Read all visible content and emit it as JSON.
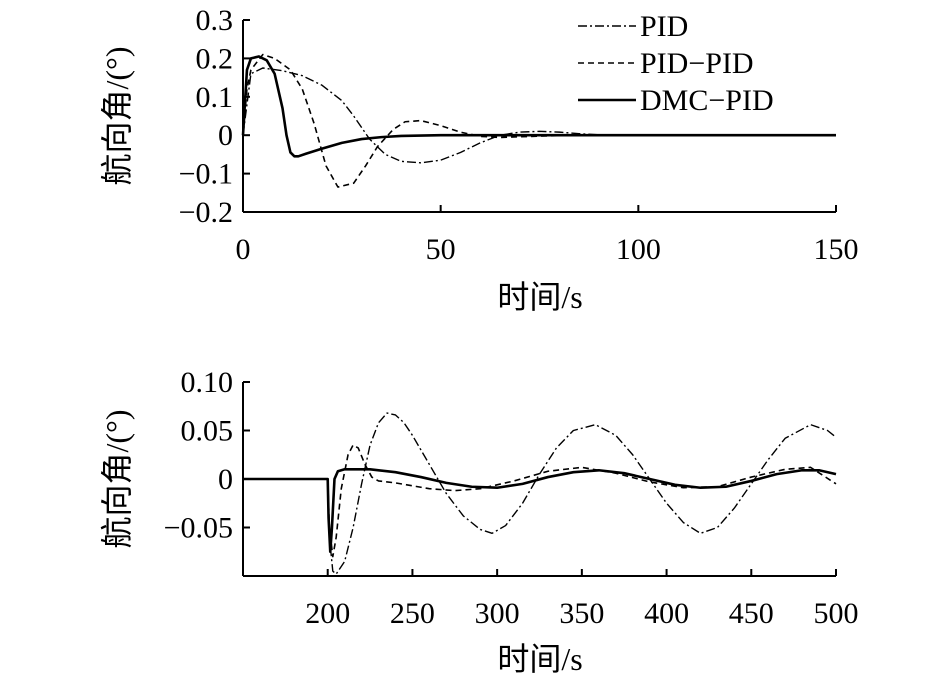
{
  "chart_data": [
    {
      "type": "line",
      "title": "",
      "xlabel": "时间/s",
      "ylabel": "航向角/(°)",
      "xlim": [
        0,
        150
      ],
      "ylim": [
        -0.2,
        0.3
      ],
      "xticks": [
        0,
        50,
        100,
        150
      ],
      "xtick_labels": [
        "0",
        "50",
        "100",
        "150"
      ],
      "yticks": [
        -0.2,
        -0.1,
        0,
        0.1,
        0.2,
        0.3
      ],
      "ytick_labels": [
        "−0.2",
        "−0.1",
        "0",
        "0.1",
        "0.2",
        "0.3"
      ],
      "legend_position": "top-right",
      "grid": false,
      "series": [
        {
          "name": "PID",
          "style": "dashdot",
          "x": [
            0,
            2,
            5,
            10,
            15,
            20,
            25,
            28,
            32,
            36,
            40,
            45,
            50,
            55,
            60,
            65,
            70,
            75,
            80,
            85,
            90,
            100,
            110,
            130,
            150
          ],
          "y": [
            0,
            0.16,
            0.175,
            0.168,
            0.155,
            0.13,
            0.09,
            0.05,
            -0.01,
            -0.05,
            -0.068,
            -0.072,
            -0.065,
            -0.045,
            -0.02,
            0.0,
            0.008,
            0.01,
            0.008,
            0.004,
            0.001,
            0,
            0,
            0,
            0
          ]
        },
        {
          "name": "PID−PID",
          "style": "dashed",
          "x": [
            0,
            1,
            2,
            5,
            8,
            12,
            15,
            18,
            21,
            24,
            28,
            31,
            34,
            38,
            41,
            45,
            50,
            55,
            60,
            65,
            70,
            80,
            90,
            150
          ],
          "y": [
            0,
            0.12,
            0.17,
            0.21,
            0.2,
            0.17,
            0.12,
            0.03,
            -0.08,
            -0.135,
            -0.125,
            -0.08,
            -0.03,
            0.015,
            0.035,
            0.038,
            0.025,
            0.008,
            -0.003,
            -0.006,
            -0.004,
            -0.001,
            0,
            0
          ]
        },
        {
          "name": "DMC−PID",
          "style": "solid",
          "x": [
            0,
            1,
            2,
            4,
            6,
            8,
            10,
            11,
            12,
            13,
            14,
            16,
            20,
            25,
            30,
            35,
            40,
            45,
            50,
            60,
            70,
            150
          ],
          "y": [
            0,
            0.17,
            0.2,
            0.205,
            0.195,
            0.16,
            0.07,
            0.0,
            -0.045,
            -0.055,
            -0.055,
            -0.048,
            -0.035,
            -0.02,
            -0.01,
            -0.005,
            -0.002,
            -0.001,
            0,
            0,
            0,
            0
          ]
        }
      ]
    },
    {
      "type": "line",
      "title": "",
      "xlabel": "时间/s",
      "ylabel": "航向角/(°)",
      "xlim": [
        150,
        500
      ],
      "ylim": [
        -0.1,
        0.1
      ],
      "xticks": [
        200,
        250,
        300,
        350,
        400,
        450,
        500
      ],
      "xtick_labels": [
        "200",
        "250",
        "300",
        "350",
        "400",
        "450",
        "500"
      ],
      "yticks": [
        -0.05,
        0,
        0.05,
        0.1
      ],
      "ytick_labels": [
        "−0.05",
        "0",
        "0.05",
        "0.10"
      ],
      "grid": false,
      "series": [
        {
          "name": "PID",
          "style": "dashdot",
          "x": [
            150,
            200,
            201,
            203,
            205,
            210,
            215,
            220,
            225,
            230,
            235,
            240,
            245,
            250,
            260,
            270,
            280,
            290,
            297,
            305,
            315,
            325,
            335,
            345,
            358,
            370,
            380,
            390,
            400,
            410,
            420,
            430,
            440,
            450,
            460,
            470,
            485,
            495,
            500
          ],
          "y": [
            0,
            0,
            -0.06,
            -0.095,
            -0.098,
            -0.085,
            -0.05,
            -0.005,
            0.035,
            0.058,
            0.068,
            0.066,
            0.058,
            0.045,
            0.015,
            -0.015,
            -0.038,
            -0.052,
            -0.056,
            -0.048,
            -0.025,
            0.005,
            0.032,
            0.05,
            0.056,
            0.045,
            0.025,
            0.0,
            -0.025,
            -0.045,
            -0.056,
            -0.05,
            -0.03,
            -0.005,
            0.02,
            0.042,
            0.056,
            0.05,
            0.043
          ]
        },
        {
          "name": "PID−PID",
          "style": "dashed",
          "x": [
            150,
            200,
            201,
            203,
            205,
            208,
            212,
            215,
            218,
            222,
            226,
            230,
            240,
            250,
            260,
            275,
            290,
            310,
            330,
            350,
            370,
            390,
            410,
            430,
            450,
            470,
            485,
            500
          ],
          "y": [
            0,
            0,
            -0.05,
            -0.08,
            -0.06,
            -0.01,
            0.025,
            0.035,
            0.032,
            0.015,
            0.002,
            -0.002,
            -0.004,
            -0.007,
            -0.01,
            -0.012,
            -0.01,
            -0.002,
            0.008,
            0.012,
            0.006,
            -0.003,
            -0.009,
            -0.008,
            0.002,
            0.01,
            0.012,
            -0.005
          ]
        },
        {
          "name": "DMC−PID",
          "style": "solid",
          "x": [
            150,
            200,
            200.5,
            201.5,
            202.5,
            204,
            206,
            210,
            215,
            225,
            240,
            255,
            270,
            285,
            300,
            315,
            330,
            345,
            360,
            375,
            390,
            405,
            420,
            435,
            450,
            465,
            480,
            490,
            500
          ],
          "y": [
            0,
            0,
            -0.04,
            -0.075,
            -0.05,
            0.0,
            0.008,
            0.01,
            0.01,
            0.01,
            0.007,
            0.002,
            -0.004,
            -0.008,
            -0.009,
            -0.005,
            0.002,
            0.007,
            0.009,
            0.006,
            0.0,
            -0.006,
            -0.009,
            -0.008,
            -0.002,
            0.005,
            0.009,
            0.009,
            0.005
          ]
        }
      ]
    }
  ]
}
